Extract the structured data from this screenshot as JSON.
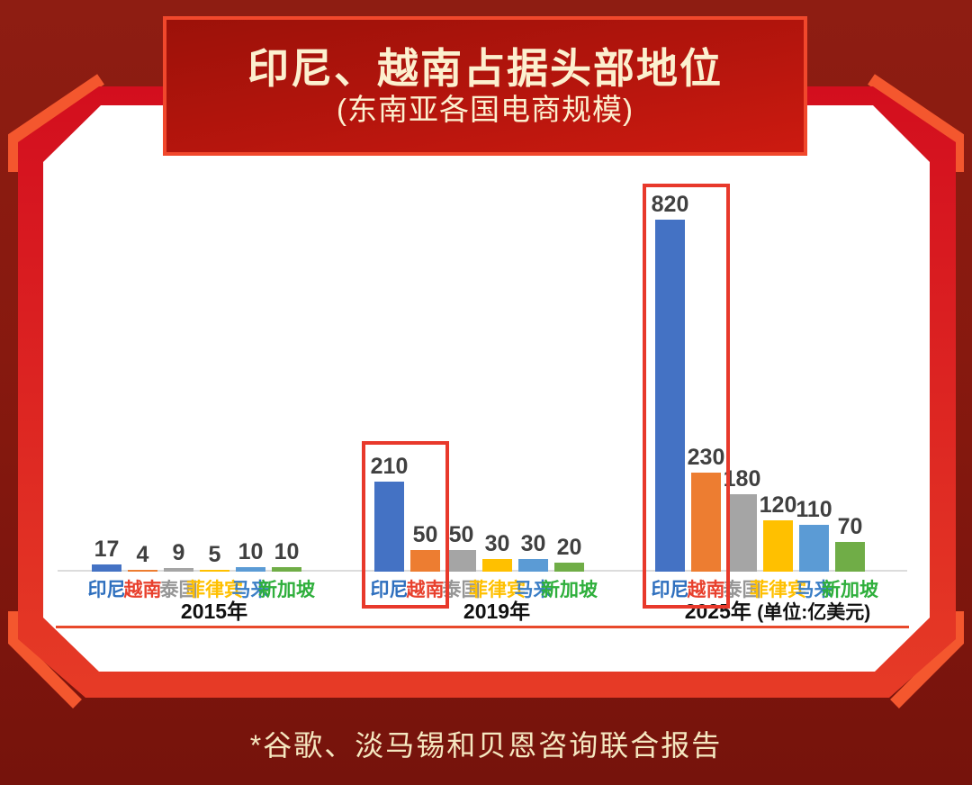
{
  "header": {
    "title": "印尼、越南占据头部地位",
    "subtitle": "(东南亚各国电商规模)"
  },
  "footer": {
    "source_note": "*谷歌、淡马锡和贝恩咨询联合报告"
  },
  "colors": {
    "background_maroon": "#87190F",
    "frame_red": "#D8101B",
    "frame_accent_orange": "#F4572E",
    "panel_white": "#FFFFFF",
    "title_box_fill": "#B5150D",
    "title_box_border": "#F1482C",
    "title_text": "#FCF0CF",
    "highlight_box_red": "#E8392B",
    "divider_line": "#E8492B",
    "axis_baseline": "#DCDCDC",
    "value_label": "#404040",
    "year_label": "#111111"
  },
  "chart_data": {
    "type": "bar",
    "title": "印尼、越南占据头部地位",
    "subtitle": "(东南亚各国电商规模)",
    "unit": "亿美元",
    "legend": "none",
    "value_axis_visible": false,
    "categories": [
      "印尼",
      "越南",
      "泰国",
      "菲律宾",
      "马来",
      "新加坡"
    ],
    "bar_colors": [
      "#4472C4",
      "#ED7D31",
      "#A5A5A5",
      "#FFC000",
      "#5B9BD5",
      "#70AD47"
    ],
    "category_label_colors": [
      "#2E6FBE",
      "#E8402D",
      "#969696",
      "#FFC000",
      "#3A7EC6",
      "#2FAF3C"
    ],
    "groups": [
      {
        "year_label": "2015年",
        "suffix": "",
        "values": [
          17,
          4,
          9,
          5,
          10,
          10
        ],
        "highlight": []
      },
      {
        "year_label": "2019年",
        "suffix": "",
        "values": [
          210,
          50,
          50,
          30,
          30,
          20
        ],
        "highlight": [
          0,
          1
        ]
      },
      {
        "year_label": "2025年",
        "suffix": "(单位:亿美元)",
        "values": [
          820,
          230,
          180,
          120,
          110,
          70
        ],
        "highlight": [
          0,
          1
        ]
      }
    ],
    "source_note": "*谷歌、淡马锡和贝恩咨询联合报告"
  }
}
